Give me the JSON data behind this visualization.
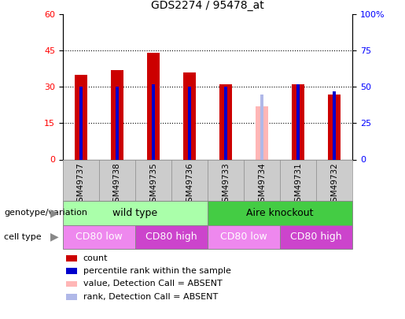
{
  "title": "GDS2274 / 95478_at",
  "samples": [
    "GSM49737",
    "GSM49738",
    "GSM49735",
    "GSM49736",
    "GSM49733",
    "GSM49734",
    "GSM49731",
    "GSM49732"
  ],
  "count_values": [
    35,
    37,
    44,
    36,
    31,
    null,
    31,
    27
  ],
  "count_absent": [
    null,
    null,
    null,
    null,
    null,
    22,
    null,
    null
  ],
  "percentile_values": [
    50,
    50,
    52,
    50,
    50,
    null,
    52,
    47
  ],
  "percentile_absent": [
    null,
    null,
    null,
    null,
    null,
    45,
    null,
    null
  ],
  "ylim_left": [
    0,
    60
  ],
  "ylim_right": [
    0,
    100
  ],
  "yticks_left": [
    0,
    15,
    30,
    45,
    60
  ],
  "yticks_right": [
    0,
    25,
    50,
    75,
    100
  ],
  "yticklabels_right": [
    "0",
    "25",
    "50",
    "75",
    "100%"
  ],
  "count_color": "#cc0000",
  "count_absent_color": "#ffb6b6",
  "percentile_color": "#0000cc",
  "percentile_absent_color": "#b0b8e8",
  "col_header_bg": "#cccccc",
  "plot_bg": "#ffffff",
  "genotype_groups": [
    {
      "label": "wild type",
      "start": 0,
      "end": 4,
      "color": "#aaffaa"
    },
    {
      "label": "Aire knockout",
      "start": 4,
      "end": 8,
      "color": "#44cc44"
    }
  ],
  "cell_type_groups": [
    {
      "label": "CD80 low",
      "start": 0,
      "end": 2,
      "color": "#ee88ee"
    },
    {
      "label": "CD80 high",
      "start": 2,
      "end": 4,
      "color": "#cc44cc"
    },
    {
      "label": "CD80 low",
      "start": 4,
      "end": 6,
      "color": "#ee88ee"
    },
    {
      "label": "CD80 high",
      "start": 6,
      "end": 8,
      "color": "#cc44cc"
    }
  ],
  "legend_items": [
    {
      "label": "count",
      "color": "#cc0000"
    },
    {
      "label": "percentile rank within the sample",
      "color": "#0000cc"
    },
    {
      "label": "value, Detection Call = ABSENT",
      "color": "#ffb6b6"
    },
    {
      "label": "rank, Detection Call = ABSENT",
      "color": "#b0b8e8"
    }
  ],
  "left_label_geno": "genotype/variation",
  "left_label_cell": "cell type",
  "bar_width": 0.35,
  "thin_bar_width": 0.08
}
